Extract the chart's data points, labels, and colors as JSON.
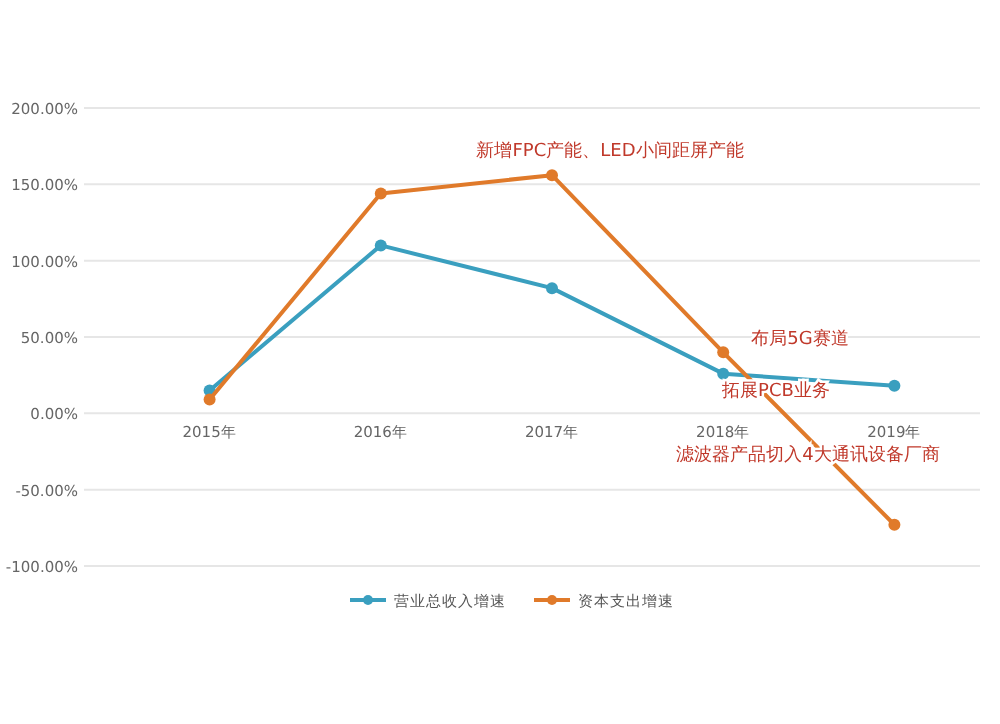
{
  "chart_data": {
    "type": "line",
    "categories": [
      "2015年",
      "2016年",
      "2017年",
      "2018年",
      "2019年"
    ],
    "series": [
      {
        "name": "营业总收入增速",
        "color": "#3a9fbf",
        "values": [
          15,
          110,
          82,
          26,
          18
        ]
      },
      {
        "name": "资本支出增速",
        "color": "#e07a2a",
        "values": [
          9,
          144,
          156,
          40,
          -73
        ]
      }
    ],
    "ylim": [
      -100,
      200
    ],
    "yticks": [
      {
        "value": -100,
        "label": "-100.00%"
      },
      {
        "value": -50,
        "label": "-50.00%"
      },
      {
        "value": 0,
        "label": "0.00%"
      },
      {
        "value": 50,
        "label": "50.00%"
      },
      {
        "value": 100,
        "label": "100.00%"
      },
      {
        "value": 150,
        "label": "150.00%"
      },
      {
        "value": 200,
        "label": "200.00%"
      }
    ],
    "annotations": [
      "新增FPC产能、LED小间距屏产能",
      "布局5G赛道",
      "拓展PCB业务",
      "滤波器产品切入4大通讯设备厂商"
    ],
    "grid": "y",
    "legend": "bottom",
    "marker": "circle"
  }
}
